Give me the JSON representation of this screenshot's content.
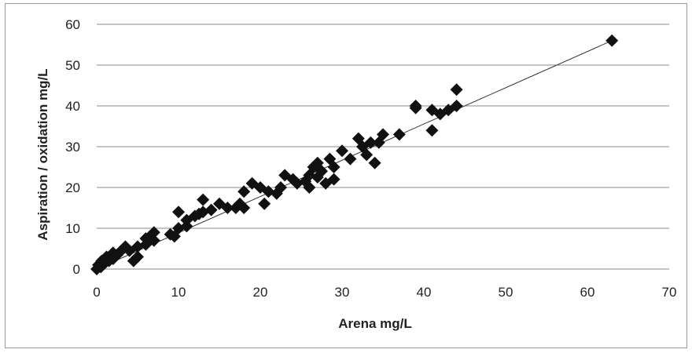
{
  "chart_data": {
    "type": "scatter",
    "title": "",
    "xlabel": "Arena mg/L",
    "ylabel": "Aspiration / oxidation mg/L",
    "xlim": [
      0,
      70
    ],
    "ylim": [
      0,
      60
    ],
    "xticks": [
      0,
      10,
      20,
      30,
      40,
      50,
      60,
      70
    ],
    "yticks": [
      0,
      10,
      20,
      30,
      40,
      50,
      60
    ],
    "grid": "horizontal",
    "legend": "none",
    "marker_color": "#111111",
    "trendline": {
      "type": "linear",
      "from": [
        0,
        0
      ],
      "to": [
        63,
        56
      ]
    },
    "series": [
      {
        "marker": "diamond",
        "points": [
          [
            0,
            0
          ],
          [
            0.2,
            1
          ],
          [
            0.5,
            0.5
          ],
          [
            0.6,
            2
          ],
          [
            1,
            1.5
          ],
          [
            1.2,
            3
          ],
          [
            1.5,
            2
          ],
          [
            2,
            2.5
          ],
          [
            2,
            4
          ],
          [
            2.5,
            3.5
          ],
          [
            3,
            4.5
          ],
          [
            3.5,
            5.5
          ],
          [
            4,
            4.5
          ],
          [
            4.5,
            2
          ],
          [
            5,
            3
          ],
          [
            5,
            5.5
          ],
          [
            6,
            6
          ],
          [
            6,
            7.5
          ],
          [
            6.5,
            8
          ],
          [
            7,
            7
          ],
          [
            7,
            9
          ],
          [
            9,
            8.5
          ],
          [
            9.5,
            8
          ],
          [
            10,
            10
          ],
          [
            10,
            14
          ],
          [
            11,
            10.5
          ],
          [
            11,
            12
          ],
          [
            12,
            13
          ],
          [
            12.5,
            13.5
          ],
          [
            13,
            14
          ],
          [
            13,
            17
          ],
          [
            14,
            14.5
          ],
          [
            15,
            16
          ],
          [
            16,
            15
          ],
          [
            17,
            15
          ],
          [
            17.5,
            16
          ],
          [
            18,
            15
          ],
          [
            18,
            19
          ],
          [
            19,
            21
          ],
          [
            20,
            20
          ],
          [
            20.5,
            16
          ],
          [
            21,
            19
          ],
          [
            22,
            18.5
          ],
          [
            22.5,
            20
          ],
          [
            23,
            23
          ],
          [
            24,
            22
          ],
          [
            24.5,
            21
          ],
          [
            25.5,
            21.5
          ],
          [
            26,
            20
          ],
          [
            26,
            23
          ],
          [
            26.5,
            25
          ],
          [
            27,
            22.5
          ],
          [
            27,
            26
          ],
          [
            27.5,
            24
          ],
          [
            28,
            21
          ],
          [
            28.5,
            27
          ],
          [
            29,
            22
          ],
          [
            29,
            25
          ],
          [
            30,
            29
          ],
          [
            31,
            27
          ],
          [
            32,
            32
          ],
          [
            32.5,
            30
          ],
          [
            33,
            28
          ],
          [
            33.5,
            31
          ],
          [
            34,
            26
          ],
          [
            34.5,
            31
          ],
          [
            35,
            33
          ],
          [
            37,
            33
          ],
          [
            39,
            39.5
          ],
          [
            39,
            40
          ],
          [
            41,
            34
          ],
          [
            41,
            39
          ],
          [
            42,
            38
          ],
          [
            43,
            39
          ],
          [
            44,
            40
          ],
          [
            44,
            44
          ],
          [
            63,
            56
          ]
        ]
      }
    ]
  }
}
